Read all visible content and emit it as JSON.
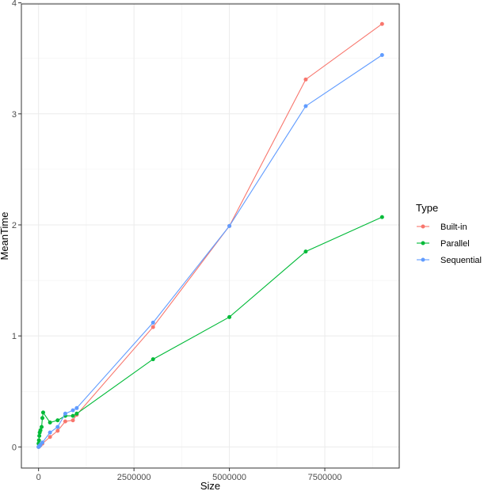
{
  "chart_data": {
    "type": "line",
    "title": "",
    "xlabel": "Size",
    "ylabel": "MeanTime",
    "xlim": [
      -450000,
      9450000
    ],
    "ylim": [
      -0.19,
      3.99
    ],
    "x_ticks": [
      0,
      2500000,
      5000000,
      7500000
    ],
    "x_tick_labels": [
      "0",
      "2500000",
      "5000000",
      "7500000"
    ],
    "y_ticks": [
      0,
      1,
      2,
      3,
      4
    ],
    "y_tick_labels": [
      "0",
      "1",
      "2",
      "3",
      "4"
    ],
    "grid": true,
    "legend": {
      "title": "Type",
      "position": "right"
    },
    "series": [
      {
        "name": "Built-in",
        "color": "#F8766D",
        "points": [
          [
            0,
            0.0
          ],
          [
            10000,
            0.003
          ],
          [
            20000,
            0.006
          ],
          [
            30000,
            0.01
          ],
          [
            50000,
            0.015
          ],
          [
            100000,
            0.03
          ],
          [
            300000,
            0.09
          ],
          [
            500000,
            0.145
          ],
          [
            700000,
            0.23
          ],
          [
            900000,
            0.24
          ],
          [
            1000000,
            0.29
          ],
          [
            3000000,
            1.08
          ],
          [
            5000000,
            1.99
          ],
          [
            7000000,
            3.31
          ],
          [
            9000000,
            3.81
          ]
        ]
      },
      {
        "name": "Parallel",
        "color": "#00BA38",
        "points": [
          [
            0,
            0.03
          ],
          [
            10000,
            0.06
          ],
          [
            20000,
            0.1
          ],
          [
            30000,
            0.13
          ],
          [
            50000,
            0.15
          ],
          [
            80000,
            0.18
          ],
          [
            100000,
            0.26
          ],
          [
            120000,
            0.31
          ],
          [
            300000,
            0.22
          ],
          [
            500000,
            0.24
          ],
          [
            700000,
            0.28
          ],
          [
            900000,
            0.28
          ],
          [
            1000000,
            0.3
          ],
          [
            3000000,
            0.79
          ],
          [
            5000000,
            1.17
          ],
          [
            7000000,
            1.76
          ],
          [
            9000000,
            2.07
          ]
        ]
      },
      {
        "name": "Sequential",
        "color": "#619CFF",
        "points": [
          [
            0,
            0.0
          ],
          [
            10000,
            0.003
          ],
          [
            20000,
            0.008
          ],
          [
            30000,
            0.012
          ],
          [
            50000,
            0.02
          ],
          [
            100000,
            0.04
          ],
          [
            300000,
            0.13
          ],
          [
            500000,
            0.18
          ],
          [
            700000,
            0.3
          ],
          [
            900000,
            0.33
          ],
          [
            1000000,
            0.35
          ],
          [
            3000000,
            1.12
          ],
          [
            5000000,
            1.99
          ],
          [
            7000000,
            3.07
          ],
          [
            9000000,
            3.53
          ]
        ]
      }
    ]
  }
}
